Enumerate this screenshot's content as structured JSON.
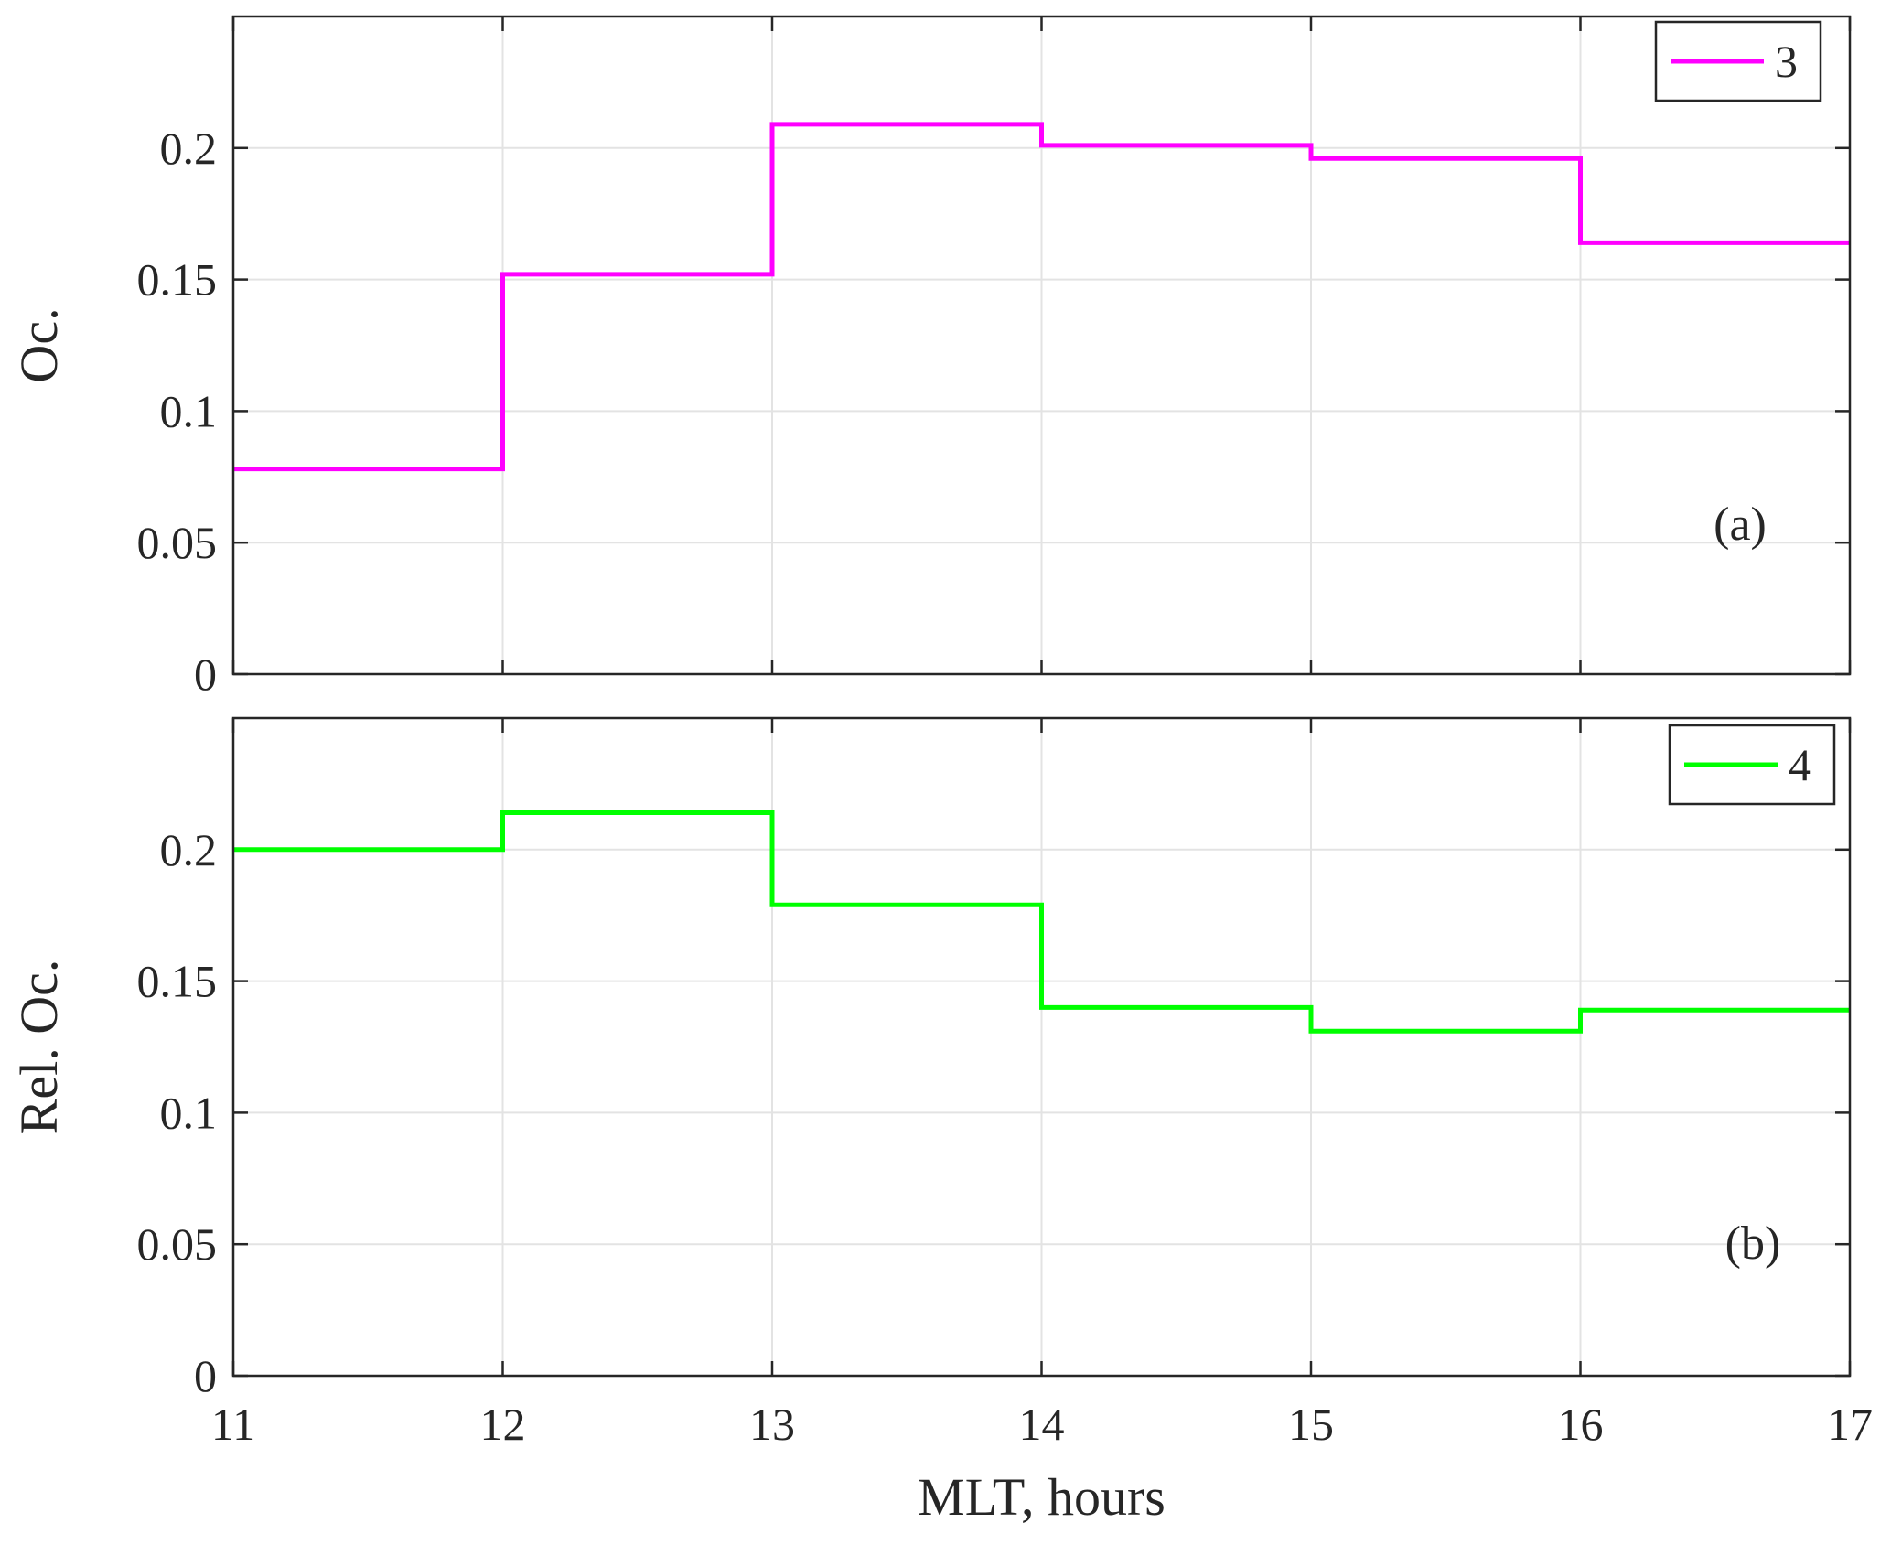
{
  "chart_data": [
    {
      "type": "line",
      "step": "post",
      "panel_tag": "(a)",
      "xlabel": "",
      "ylabel": "Oc.",
      "xlim": [
        11,
        17
      ],
      "ylim": [
        0,
        0.25
      ],
      "xticks": [
        11,
        12,
        13,
        14,
        15,
        16,
        17
      ],
      "yticks": [
        0,
        0.05,
        0.1,
        0.15,
        0.2
      ],
      "ytick_labels": [
        "0",
        "0.05",
        "0.1",
        "0.15",
        "0.2"
      ],
      "grid": true,
      "legend_position": "top-right",
      "series": [
        {
          "name": "3",
          "color": "#ff00ff",
          "x": [
            11,
            12,
            13,
            14,
            15,
            16,
            17
          ],
          "y": [
            0.078,
            0.152,
            0.209,
            0.201,
            0.196,
            0.164,
            0.164
          ]
        }
      ]
    },
    {
      "type": "line",
      "step": "post",
      "panel_tag": "(b)",
      "xlabel": "MLT, hours",
      "ylabel": "Rel. Oc.",
      "xlim": [
        11,
        17
      ],
      "ylim": [
        0,
        0.25
      ],
      "xticks": [
        11,
        12,
        13,
        14,
        15,
        16,
        17
      ],
      "xtick_labels": [
        "11",
        "12",
        "13",
        "14",
        "15",
        "16",
        "17"
      ],
      "yticks": [
        0,
        0.05,
        0.1,
        0.15,
        0.2
      ],
      "ytick_labels": [
        "0",
        "0.05",
        "0.1",
        "0.15",
        "0.2"
      ],
      "grid": true,
      "legend_position": "top-right",
      "series": [
        {
          "name": "4",
          "color": "#00ff00",
          "x": [
            11,
            12,
            13,
            14,
            15,
            16,
            17
          ],
          "y": [
            0.2,
            0.214,
            0.179,
            0.14,
            0.131,
            0.139,
            0.139
          ]
        }
      ]
    }
  ]
}
